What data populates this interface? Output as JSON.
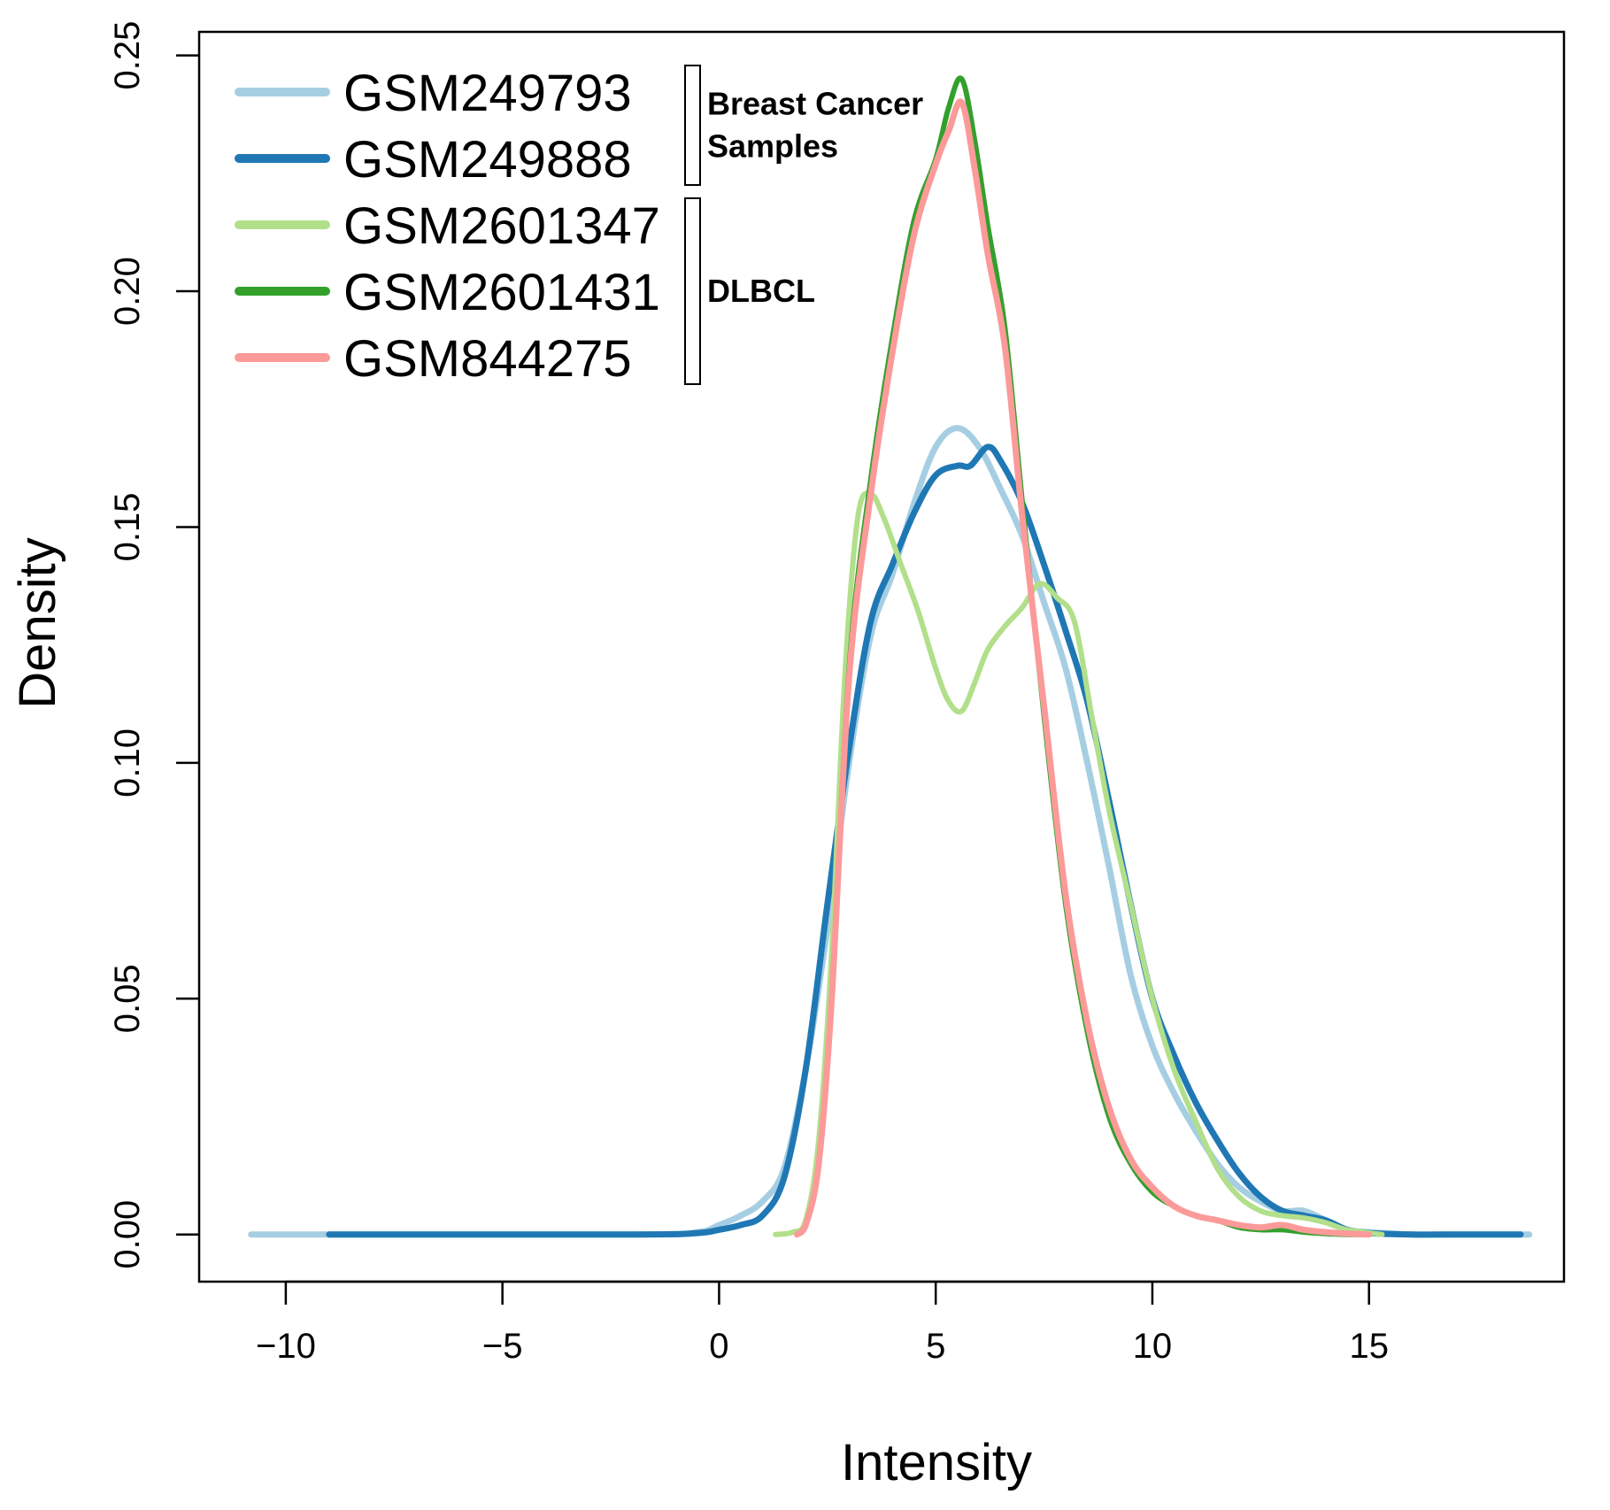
{
  "chart_data": {
    "type": "line",
    "title": "",
    "xlabel": "Intensity",
    "ylabel": "Density",
    "xlim": [
      -12,
      19.5
    ],
    "ylim": [
      -0.01,
      0.255
    ],
    "xticks": [
      -10,
      -5,
      0,
      5,
      10,
      15
    ],
    "yticks": [
      0.0,
      0.05,
      0.1,
      0.15,
      0.2,
      0.25
    ],
    "xtick_labels": [
      "−10",
      "−5",
      "0",
      "5",
      "10",
      "15"
    ],
    "ytick_labels": [
      "0.00",
      "0.05",
      "0.10",
      "0.15",
      "0.20",
      "0.25"
    ],
    "legend_position": "top-left",
    "groups": [
      {
        "label_lines": [
          "Breast Cancer",
          "Samples"
        ],
        "members": [
          "GSM249793",
          "GSM249888"
        ]
      },
      {
        "label_lines": [
          "DLBCL"
        ],
        "members": [
          "GSM2601347",
          "GSM2601431",
          "GSM844275"
        ]
      }
    ],
    "series": [
      {
        "name": "GSM249793",
        "color": "#a6cee3",
        "x": [
          -10.8,
          -2,
          -0.5,
          0,
          0.5,
          1,
          1.5,
          2,
          2.5,
          3,
          3.5,
          4,
          4.5,
          5,
          5.5,
          6,
          6.5,
          7,
          7.5,
          8,
          8.5,
          9,
          9.5,
          10,
          10.5,
          11,
          11.5,
          12,
          12.5,
          13,
          13.5,
          14,
          14.5,
          15,
          16,
          17,
          18.7
        ],
        "y": [
          0.0,
          0.0,
          0.0005,
          0.002,
          0.004,
          0.007,
          0.014,
          0.035,
          0.065,
          0.1,
          0.127,
          0.14,
          0.155,
          0.167,
          0.171,
          0.167,
          0.158,
          0.148,
          0.134,
          0.12,
          0.1,
          0.078,
          0.055,
          0.04,
          0.03,
          0.022,
          0.015,
          0.01,
          0.007,
          0.005,
          0.005,
          0.003,
          0.001,
          0.0005,
          0.0,
          0.0,
          0.0
        ]
      },
      {
        "name": "GSM249888",
        "color": "#1f78b4",
        "x": [
          -9,
          -2,
          -0.5,
          0,
          0.5,
          1,
          1.5,
          2,
          2.5,
          3,
          3.5,
          4,
          4.5,
          5,
          5.5,
          5.8,
          6.2,
          6.5,
          7,
          7.5,
          8,
          8.5,
          9,
          9.5,
          10,
          10.5,
          11,
          11.5,
          12,
          12.5,
          13,
          13.5,
          14,
          14.5,
          15,
          16,
          17,
          18.5
        ],
        "y": [
          0.0,
          0.0,
          0.0003,
          0.001,
          0.002,
          0.004,
          0.012,
          0.035,
          0.07,
          0.103,
          0.13,
          0.142,
          0.153,
          0.161,
          0.163,
          0.163,
          0.167,
          0.164,
          0.155,
          0.142,
          0.128,
          0.113,
          0.092,
          0.07,
          0.05,
          0.038,
          0.028,
          0.02,
          0.013,
          0.008,
          0.005,
          0.004,
          0.003,
          0.001,
          0.0003,
          0.0,
          0.0,
          0.0
        ]
      },
      {
        "name": "GSM2601347",
        "color": "#b2df8a",
        "x": [
          1.3,
          1.7,
          2,
          2.3,
          2.6,
          2.9,
          3.2,
          3.5,
          3.8,
          4.2,
          4.6,
          5,
          5.3,
          5.6,
          5.9,
          6.2,
          6.6,
          7,
          7.4,
          7.8,
          8.2,
          8.6,
          9,
          9.5,
          10,
          10.5,
          11,
          11.5,
          12,
          12.5,
          13,
          13.5,
          14,
          14.5,
          15.3
        ],
        "y": [
          0.0,
          0.0005,
          0.003,
          0.02,
          0.06,
          0.118,
          0.152,
          0.157,
          0.152,
          0.142,
          0.132,
          0.12,
          0.113,
          0.111,
          0.117,
          0.124,
          0.129,
          0.133,
          0.138,
          0.135,
          0.13,
          0.11,
          0.09,
          0.07,
          0.05,
          0.035,
          0.024,
          0.014,
          0.008,
          0.005,
          0.004,
          0.0035,
          0.0025,
          0.001,
          0.0
        ]
      },
      {
        "name": "GSM2601431",
        "color": "#33a02c",
        "x": [
          1.8,
          2,
          2.3,
          2.6,
          3,
          3.5,
          4,
          4.5,
          5,
          5.3,
          5.6,
          5.9,
          6.2,
          6.6,
          7,
          7.5,
          8,
          8.5,
          9,
          9.5,
          10,
          10.5,
          11,
          11.5,
          12,
          12.5,
          13,
          13.5,
          14,
          14.5,
          15
        ],
        "y": [
          0.0,
          0.002,
          0.015,
          0.05,
          0.12,
          0.16,
          0.19,
          0.215,
          0.228,
          0.239,
          0.245,
          0.232,
          0.214,
          0.192,
          0.155,
          0.11,
          0.07,
          0.043,
          0.025,
          0.015,
          0.009,
          0.006,
          0.004,
          0.003,
          0.0015,
          0.001,
          0.001,
          0.0005,
          0.0002,
          0.0,
          0.0
        ]
      },
      {
        "name": "GSM844275",
        "color": "#fb9a99",
        "x": [
          1.8,
          2,
          2.3,
          2.6,
          3,
          3.5,
          4,
          4.5,
          5,
          5.3,
          5.6,
          5.9,
          6.2,
          6.6,
          7,
          7.5,
          8,
          8.5,
          9,
          9.5,
          10,
          10.5,
          11,
          11.5,
          12,
          12.5,
          13,
          13.5,
          14,
          14.5,
          15
        ],
        "y": [
          0.0,
          0.002,
          0.015,
          0.05,
          0.118,
          0.157,
          0.187,
          0.212,
          0.227,
          0.234,
          0.24,
          0.226,
          0.208,
          0.188,
          0.152,
          0.112,
          0.072,
          0.045,
          0.027,
          0.016,
          0.01,
          0.006,
          0.004,
          0.003,
          0.002,
          0.0015,
          0.002,
          0.001,
          0.0005,
          0.0002,
          0.0
        ]
      }
    ]
  }
}
